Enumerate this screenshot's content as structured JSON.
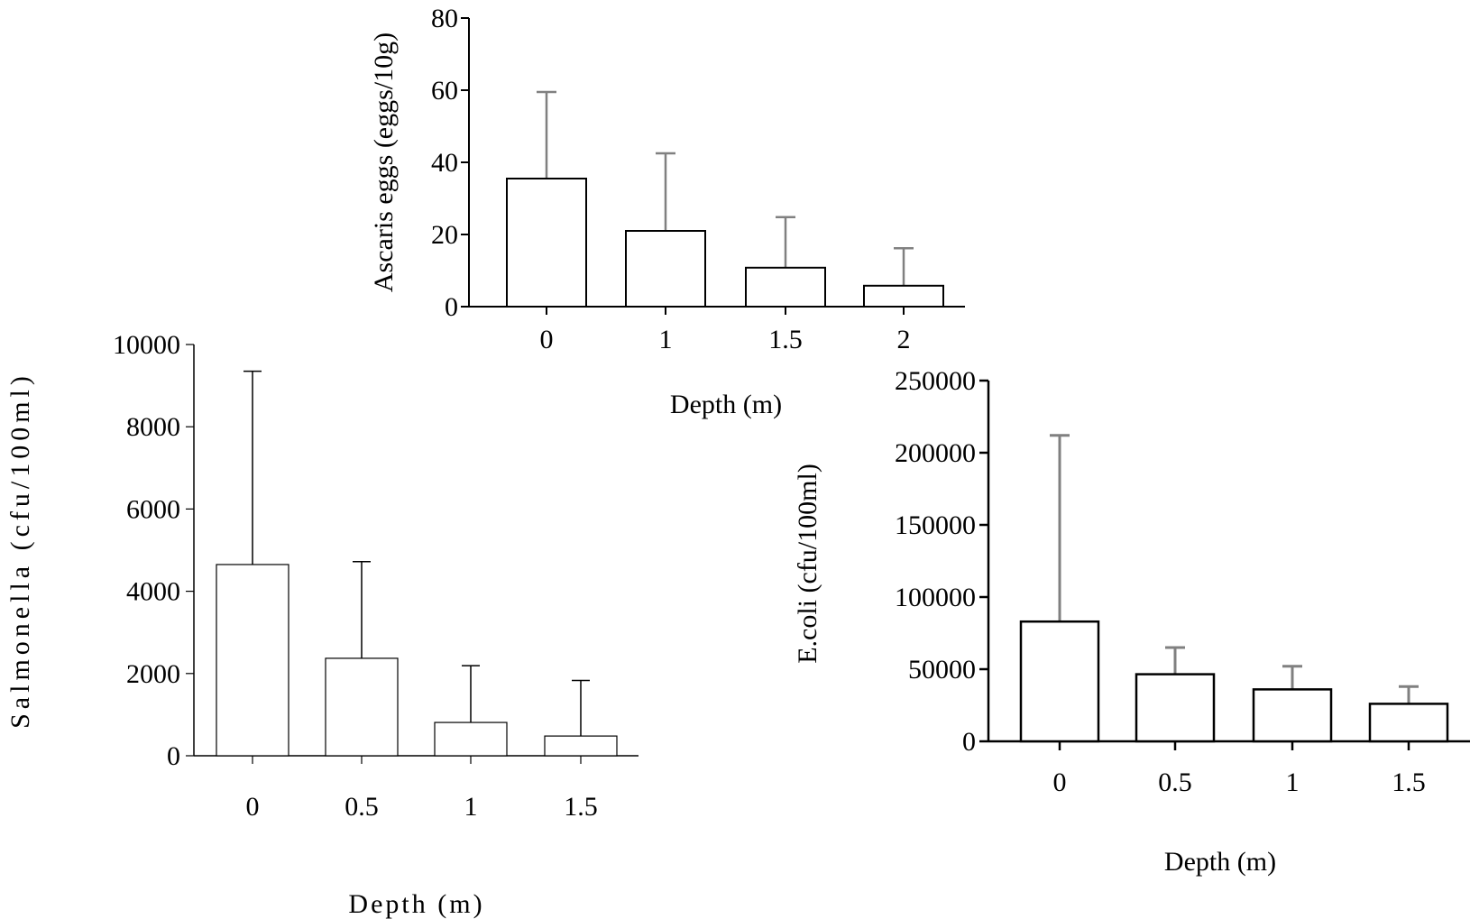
{
  "chart_data": [
    {
      "id": "ascaris",
      "type": "bar",
      "ylabel": "Ascaris eggs (eggs/10g)",
      "xlabel": "Depth (m)",
      "categories": [
        "0",
        "1",
        "1.5",
        "2"
      ],
      "values": [
        35.5,
        21,
        10.8,
        5.8
      ],
      "error_upper": [
        59.5,
        42.5,
        24.8,
        16.2
      ],
      "ylim": [
        0,
        80
      ],
      "yticks": [
        "0",
        "20",
        "40",
        "60",
        "80"
      ],
      "grid": false,
      "error_bar_color": "#808080"
    },
    {
      "id": "salmonella",
      "type": "bar",
      "ylabel": "Salmonella (cfu/100ml)",
      "xlabel": "Depth (m)",
      "categories": [
        "0",
        "0.5",
        "1",
        "1.5"
      ],
      "values": [
        4650,
        2370,
        810,
        480
      ],
      "error_upper": [
        9350,
        4720,
        2190,
        1830
      ],
      "ylim": [
        0,
        10000
      ],
      "yticks": [
        "0",
        "2000",
        "4000",
        "6000",
        "8000",
        "10000"
      ],
      "grid": false,
      "error_bar_color": "#000000"
    },
    {
      "id": "ecoli",
      "type": "bar",
      "ylabel": "E.coli (cfu/100ml)",
      "xlabel": "Depth (m)",
      "categories": [
        "0",
        "0.5",
        "1",
        "1.5"
      ],
      "values": [
        83000,
        46500,
        36000,
        26000
      ],
      "error_upper": [
        212000,
        65000,
        52000,
        38000
      ],
      "ylim": [
        0,
        250000
      ],
      "yticks": [
        "0",
        "50000",
        "100000",
        "150000",
        "200000",
        "250000"
      ],
      "grid": false,
      "error_bar_color": "#808080"
    }
  ]
}
